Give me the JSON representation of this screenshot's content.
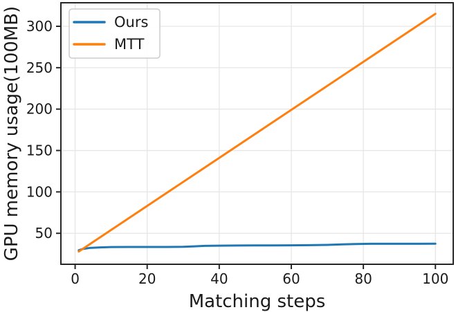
{
  "chart_data": {
    "type": "line",
    "title": "",
    "xlabel": "Matching steps",
    "ylabel": "GPU memory usage(100MB)",
    "xlim": [
      -3.95,
      104.95
    ],
    "ylim": [
      12.6,
      328.4
    ],
    "xticks": [
      0,
      20,
      40,
      60,
      80,
      100
    ],
    "yticks": [
      50,
      100,
      150,
      200,
      250,
      300
    ],
    "grid": true,
    "legend_position": "upper-left",
    "series": [
      {
        "name": "Ours",
        "color": "#1f77b4",
        "x": [
          1,
          2,
          4,
          7,
          10,
          15,
          20,
          25,
          30,
          33,
          36,
          40,
          45,
          50,
          55,
          60,
          65,
          70,
          74,
          78,
          82,
          86,
          90,
          95,
          100
        ],
        "y": [
          29.5,
          31,
          32.3,
          33,
          33.4,
          33.5,
          33.5,
          33.5,
          33.7,
          34.2,
          34.8,
          35.1,
          35.2,
          35.3,
          35.4,
          35.5,
          35.7,
          36,
          36.6,
          37.1,
          37.3,
          37.3,
          37.3,
          37.3,
          37.4
        ]
      },
      {
        "name": "MTT",
        "color": "#ff7f0e",
        "x": [
          1,
          100
        ],
        "y": [
          28,
          315
        ]
      }
    ],
    "colors": {
      "grid": "#e6e6e6",
      "spine": "#262626",
      "tick": "#262626",
      "text": "#1a1a1a",
      "legend_border": "#cccccc",
      "legend_bg": "#ffffff",
      "background": "#ffffff"
    }
  }
}
